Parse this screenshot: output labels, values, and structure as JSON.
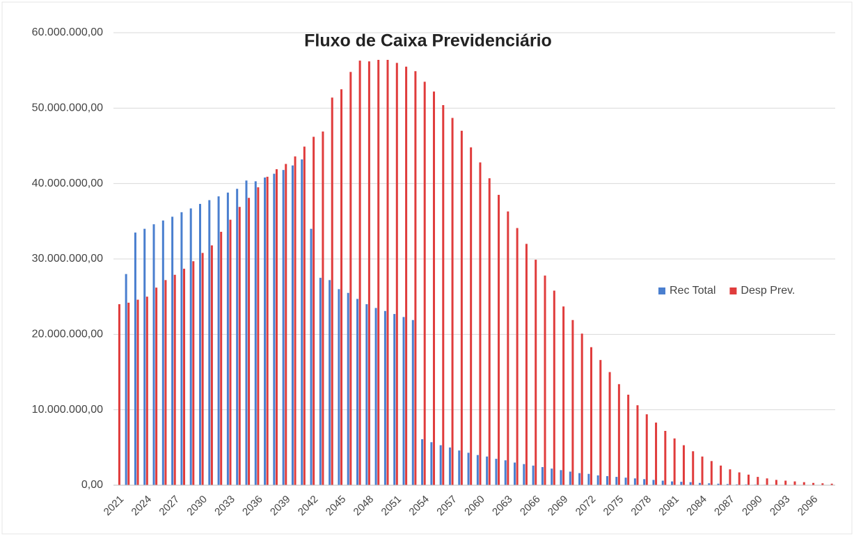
{
  "chart_data": {
    "type": "bar",
    "title": "Fluxo de Caixa Previdenciário",
    "categories": [
      "2021",
      null,
      null,
      "2024",
      null,
      null,
      "2027",
      null,
      null,
      "2030",
      null,
      null,
      "2033",
      null,
      null,
      "2036",
      null,
      null,
      "2039",
      null,
      null,
      "2042",
      null,
      null,
      "2045",
      null,
      null,
      "2048",
      null,
      null,
      "2051",
      null,
      null,
      "2054",
      null,
      null,
      "2057",
      null,
      null,
      "2060",
      null,
      null,
      "2063",
      null,
      null,
      "2066",
      null,
      null,
      "2069",
      null,
      null,
      "2072",
      null,
      null,
      "2075",
      null,
      null,
      "2078",
      null,
      null,
      "2081",
      null,
      null,
      "2084",
      null,
      null,
      "2087",
      null,
      null,
      "2090",
      null,
      null,
      "2093",
      null,
      null,
      "2096",
      null,
      null
    ],
    "series": [
      {
        "name": "Rec Total",
        "color": "#4a7fcf",
        "values": [
          0,
          28000000,
          33500000,
          34000000,
          34600000,
          35100000,
          35600000,
          36200000,
          36700000,
          37300000,
          37800000,
          38300000,
          38800000,
          39300000,
          40400000,
          40300000,
          40800000,
          41300000,
          41800000,
          42400000,
          43200000,
          34000000,
          27500000,
          27200000,
          26000000,
          25500000,
          24700000,
          24000000,
          23500000,
          23100000,
          22700000,
          22300000,
          21900000,
          6100000,
          5700000,
          5300000,
          5000000,
          4600000,
          4300000,
          4000000,
          3800000,
          3500000,
          3300000,
          3000000,
          2800000,
          2600000,
          2400000,
          2200000,
          2000000,
          1800000,
          1600000,
          1500000,
          1300000,
          1200000,
          1100000,
          1000000,
          900000,
          800000,
          700000,
          600000,
          500000,
          450000,
          400000,
          300000,
          250000,
          200000,
          150000,
          100000,
          100000,
          80000,
          60000,
          50000,
          40000,
          30000,
          20000,
          20000,
          10000,
          10000
        ]
      },
      {
        "name": "Desp Prev.",
        "color": "#e03c3c",
        "values": [
          24000000,
          24200000,
          24600000,
          25000000,
          26200000,
          27200000,
          27900000,
          28700000,
          29700000,
          30800000,
          31800000,
          33600000,
          35200000,
          36900000,
          38100000,
          39500000,
          40900000,
          41900000,
          42600000,
          43600000,
          44900000,
          46200000,
          46900000,
          51400000,
          52500000,
          54800000,
          56300000,
          56200000,
          56400000,
          56400000,
          56000000,
          55500000,
          54900000,
          53500000,
          52200000,
          50400000,
          48700000,
          47000000,
          44800000,
          42800000,
          40700000,
          38500000,
          36300000,
          34100000,
          32000000,
          29900000,
          27800000,
          25800000,
          23700000,
          21900000,
          20100000,
          18300000,
          16600000,
          15000000,
          13400000,
          12000000,
          10600000,
          9400000,
          8300000,
          7200000,
          6200000,
          5300000,
          4500000,
          3800000,
          3200000,
          2600000,
          2100000,
          1700000,
          1400000,
          1100000,
          900000,
          700000,
          600000,
          500000,
          400000,
          300000,
          250000,
          200000
        ]
      }
    ],
    "ylim": [
      0,
      60000000
    ],
    "yticks": [
      {
        "value": 0,
        "label": "0,00"
      },
      {
        "value": 10000000,
        "label": "10.000.000,00"
      },
      {
        "value": 20000000,
        "label": "20.000.000,00"
      },
      {
        "value": 30000000,
        "label": "30.000.000,00"
      },
      {
        "value": 40000000,
        "label": "40.000.000,00"
      },
      {
        "value": 50000000,
        "label": "50.000.000,00"
      },
      {
        "value": 60000000,
        "label": "60.000.000,00"
      }
    ],
    "grid": true,
    "legend": "right"
  }
}
